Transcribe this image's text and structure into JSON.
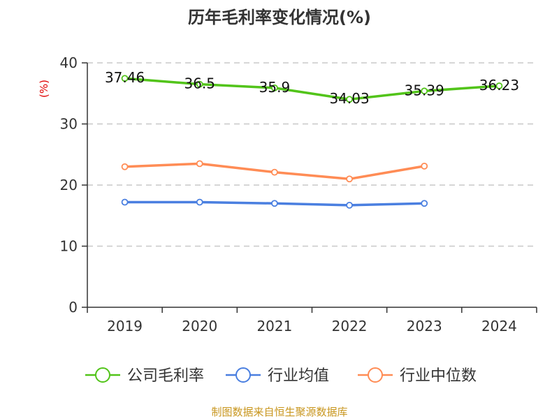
{
  "chart_data": {
    "type": "line",
    "title": "历年毛利率变化情况(%)",
    "ylabel": "(%)",
    "xlabel": "",
    "categories": [
      "2019",
      "2020",
      "2021",
      "2022",
      "2023",
      "2024"
    ],
    "ylim": [
      0,
      40
    ],
    "yticks": [
      0,
      10,
      20,
      30,
      40
    ],
    "grid": "horizontal dashed",
    "legend_position": "bottom",
    "series": [
      {
        "name": "公司毛利率",
        "color": "#52c41a",
        "values": [
          37.46,
          36.5,
          35.9,
          34.03,
          35.39,
          36.23
        ],
        "labels": [
          "37.46",
          "36.5",
          "35.9",
          "34.03",
          "35.39",
          "36.23"
        ]
      },
      {
        "name": "行业均值",
        "color": "#4a7fe0",
        "values": [
          17.2,
          17.2,
          17.0,
          16.7,
          17.0,
          null
        ]
      },
      {
        "name": "行业中位数",
        "color": "#ff8c55",
        "values": [
          23.0,
          23.5,
          22.1,
          21.0,
          23.1,
          null
        ]
      }
    ]
  },
  "footer": {
    "source": "制图数据来自恒生聚源数据库",
    "color": "#c8961e"
  }
}
